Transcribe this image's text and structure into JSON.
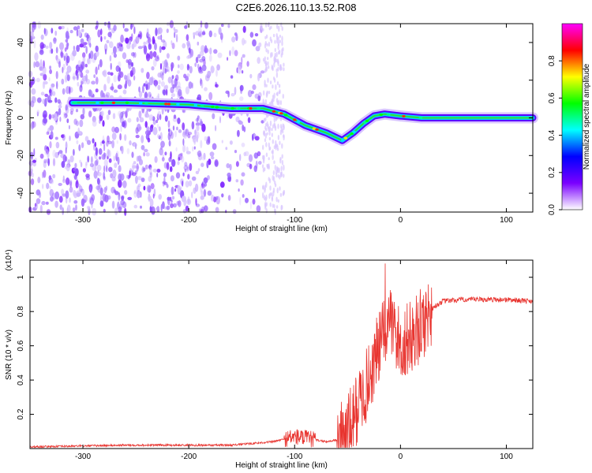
{
  "title": "C2E6.2026.110.13.52.R08",
  "chart_data": [
    {
      "type": "heatmap",
      "xlabel": "Height of straight line (km)",
      "ylabel": "Frequency (Hz)",
      "xlim": [
        -350,
        125
      ],
      "ylim": [
        -50,
        50
      ],
      "xticks": [
        -300,
        -200,
        -100,
        0,
        100
      ],
      "yticks": [
        -40,
        -20,
        0,
        20,
        40
      ],
      "colorbar": {
        "label": "Normalized spectral amplitude",
        "range": [
          0,
          1
        ],
        "ticks": [
          0.0,
          0.2,
          0.4,
          0.6,
          0.8
        ],
        "colors": [
          "#ffffff",
          "#7a00ff",
          "#0000ff",
          "#00ffff",
          "#00ff00",
          "#ffff00",
          "#ff0000",
          "#ff00ff"
        ]
      },
      "ridge": {
        "x": [
          -310,
          -260,
          -200,
          -160,
          -130,
          -110,
          -90,
          -70,
          -55,
          -45,
          -35,
          -25,
          -15,
          0,
          20,
          60,
          125
        ],
        "y": [
          8,
          8,
          7,
          5,
          5,
          2,
          -4,
          -8,
          -12,
          -8,
          -3,
          1,
          2,
          1,
          0,
          0,
          0
        ]
      }
    },
    {
      "type": "line",
      "xlabel": "Height of straight line (km)",
      "ylabel": "SNR (10 * v/v)",
      "y_multiplier": "(x10⁴)",
      "xlim": [
        -350,
        125
      ],
      "ylim": [
        0,
        1.1
      ],
      "xticks": [
        -300,
        -200,
        -100,
        0,
        100
      ],
      "yticks": [
        0.2,
        0.4,
        0.6,
        0.8,
        1.0
      ],
      "color": "#e8342f",
      "x": [
        -350,
        -300,
        -260,
        -220,
        -160,
        -140,
        -120,
        -100,
        -90,
        -80,
        -70,
        -60,
        -50,
        -40,
        -30,
        -20,
        -10,
        0,
        10,
        20,
        30,
        40,
        60,
        80,
        100,
        125
      ],
      "y": [
        0.01,
        0.015,
        0.02,
        0.02,
        0.02,
        0.03,
        0.04,
        0.07,
        0.06,
        0.05,
        0.04,
        0.05,
        0.1,
        0.25,
        0.4,
        0.6,
        0.75,
        0.6,
        0.65,
        0.72,
        0.82,
        0.86,
        0.87,
        0.87,
        0.87,
        0.86
      ]
    }
  ]
}
